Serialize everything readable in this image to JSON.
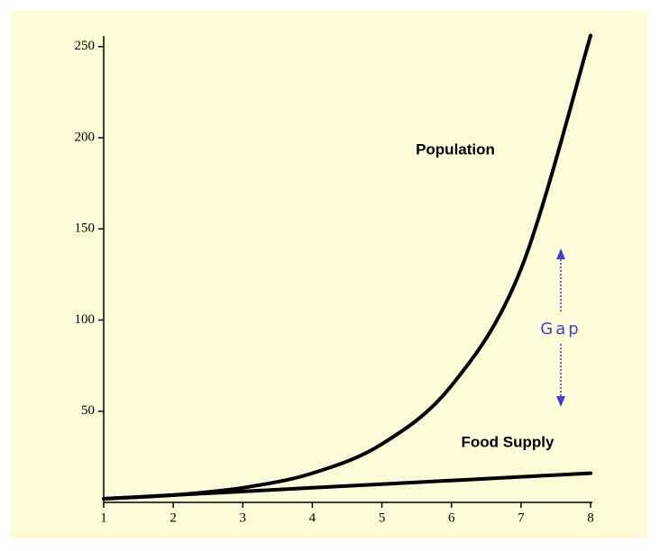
{
  "chart_data": {
    "type": "line",
    "x": [
      1,
      2,
      3,
      4,
      5,
      6,
      7,
      8
    ],
    "series": [
      {
        "name": "Population",
        "color": "#000000",
        "values": [
          2,
          4,
          8,
          16,
          32,
          64,
          128,
          256
        ]
      },
      {
        "name": "Food Supply",
        "color": "#000000",
        "values": [
          2,
          4,
          6,
          8,
          10,
          12,
          14,
          16
        ]
      }
    ],
    "annotation": "Gap",
    "annotation_color": "#4040d0",
    "xlim": [
      1,
      8
    ],
    "xticks": [
      1,
      2,
      3,
      4,
      5,
      6,
      7,
      8
    ],
    "ylim": [
      0,
      256
    ],
    "yticks": [
      50,
      100,
      150,
      200,
      250
    ],
    "background": "#fdfbd8"
  }
}
